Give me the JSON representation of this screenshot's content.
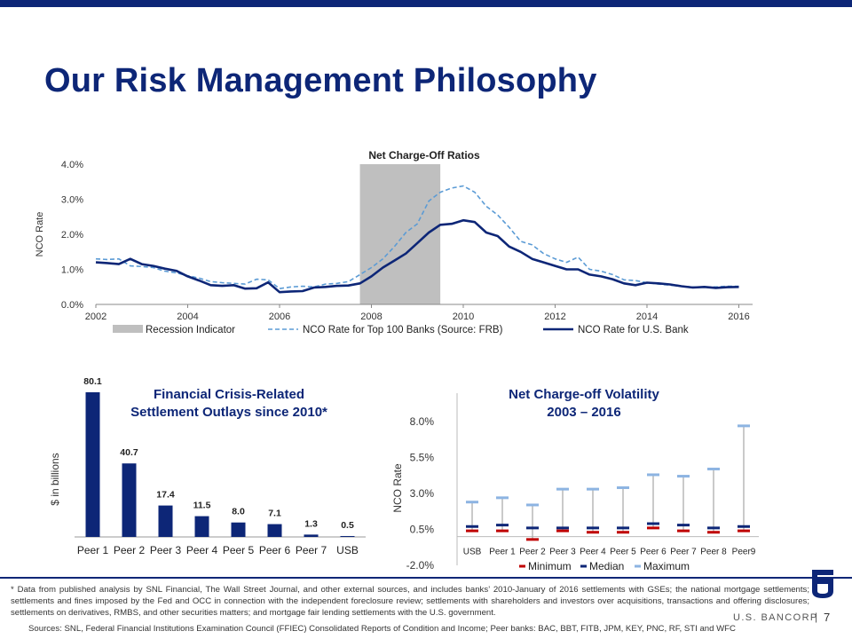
{
  "title": "Our Risk Management Philosophy",
  "footnote": "* Data from published analysis by SNL Financial, The Wall Street Journal, and other external sources, and includes banks’ 2010-January of 2016 settlements with GSEs; the national mortgage settlements; settlements and fines imposed by the Fed and OCC in connection with the independent foreclosure review; settlements with shareholders and investors over acquisitions, transactions and offering disclosures; settlements on derivatives, RMBS, and other securities matters; and mortgage fair lending settlements with the U.S. government.",
  "sources": "Sources: SNL, Federal Financial Institutions Examination Council (FFIEC) Consolidated Reports of Condition and Income; Peer banks: BAC, BBT, FITB, JPM, KEY, PNC, RF, STI and WFC",
  "brand": "U.S. BANCORP",
  "page_number": "7",
  "colors": {
    "navy": "#0d2677",
    "dashed": "#5b9bd5",
    "recession": "#bfbfbf",
    "minimum": "#c00000",
    "median": "#0d2677",
    "maximum": "#8db4e2",
    "range_line": "#a6a6a6"
  },
  "chart_data": [
    {
      "type": "line",
      "title": "Net Charge-Off Ratios",
      "ylabel": "NCO Rate",
      "xlim": [
        2002,
        2016.3
      ],
      "ylim": [
        0,
        4
      ],
      "x_ticks": [
        "2002",
        "2004",
        "2006",
        "2008",
        "2010",
        "2012",
        "2014",
        "2016"
      ],
      "y_ticks": [
        "0.0%",
        "1.0%",
        "2.0%",
        "3.0%",
        "4.0%"
      ],
      "recession": {
        "name": "Recession Indicator",
        "start": 2007.75,
        "end": 2009.5
      },
      "series": [
        {
          "name": "NCO Rate for Top 100 Banks (Source: FRB)",
          "style": "dashed",
          "x": [
            2002,
            2002.25,
            2002.5,
            2002.75,
            2003,
            2003.25,
            2003.5,
            2003.75,
            2004,
            2004.25,
            2004.5,
            2004.75,
            2005,
            2005.25,
            2005.5,
            2005.75,
            2006,
            2006.25,
            2006.5,
            2006.75,
            2007,
            2007.25,
            2007.5,
            2007.75,
            2008,
            2008.25,
            2008.5,
            2008.75,
            2009,
            2009.25,
            2009.5,
            2009.75,
            2010,
            2010.25,
            2010.5,
            2010.75,
            2011,
            2011.25,
            2011.5,
            2011.75,
            2012,
            2012.25,
            2012.5,
            2012.75,
            2013,
            2013.25,
            2013.5,
            2013.75,
            2014,
            2014.25,
            2014.5,
            2014.75,
            2015,
            2015.25,
            2015.5,
            2015.75,
            2016
          ],
          "y": [
            1.3,
            1.28,
            1.3,
            1.1,
            1.08,
            1.05,
            0.95,
            0.9,
            0.82,
            0.75,
            0.65,
            0.62,
            0.6,
            0.58,
            0.72,
            0.7,
            0.45,
            0.5,
            0.52,
            0.5,
            0.58,
            0.6,
            0.65,
            0.85,
            1.05,
            1.3,
            1.65,
            2.05,
            2.3,
            2.95,
            3.2,
            3.32,
            3.38,
            3.2,
            2.8,
            2.55,
            2.2,
            1.8,
            1.7,
            1.45,
            1.3,
            1.2,
            1.35,
            1.0,
            0.95,
            0.85,
            0.7,
            0.68,
            0.62,
            0.58,
            0.55,
            0.52,
            0.5,
            0.5,
            0.5,
            0.52,
            0.52
          ]
        },
        {
          "name": "NCO Rate for U.S. Bank",
          "style": "solid",
          "x": [
            2002,
            2002.25,
            2002.5,
            2002.75,
            2003,
            2003.25,
            2003.5,
            2003.75,
            2004,
            2004.25,
            2004.5,
            2004.75,
            2005,
            2005.25,
            2005.5,
            2005.75,
            2006,
            2006.25,
            2006.5,
            2006.75,
            2007,
            2007.25,
            2007.5,
            2007.75,
            2008,
            2008.25,
            2008.5,
            2008.75,
            2009,
            2009.25,
            2009.5,
            2009.75,
            2010,
            2010.25,
            2010.5,
            2010.75,
            2011,
            2011.25,
            2011.5,
            2011.75,
            2012,
            2012.25,
            2012.5,
            2012.75,
            2013,
            2013.25,
            2013.5,
            2013.75,
            2014,
            2014.25,
            2014.5,
            2014.75,
            2015,
            2015.25,
            2015.5,
            2015.75,
            2016
          ],
          "y": [
            1.2,
            1.18,
            1.15,
            1.3,
            1.15,
            1.1,
            1.02,
            0.96,
            0.8,
            0.68,
            0.55,
            0.53,
            0.55,
            0.45,
            0.46,
            0.63,
            0.35,
            0.37,
            0.38,
            0.48,
            0.5,
            0.53,
            0.54,
            0.6,
            0.8,
            1.05,
            1.25,
            1.45,
            1.75,
            2.05,
            2.27,
            2.3,
            2.4,
            2.35,
            2.05,
            1.95,
            1.65,
            1.5,
            1.3,
            1.2,
            1.1,
            1.0,
            1.0,
            0.85,
            0.8,
            0.72,
            0.6,
            0.55,
            0.62,
            0.6,
            0.57,
            0.52,
            0.48,
            0.5,
            0.47,
            0.49,
            0.5
          ]
        }
      ]
    },
    {
      "type": "bar",
      "title": "Financial Crisis-Related Settlement Outlays since 2010*",
      "title_lines": [
        "Financial Crisis-Related",
        "Settlement Outlays since 2010*"
      ],
      "ylabel": "$ in billions",
      "categories": [
        "Peer 1",
        "Peer 2",
        "Peer 3",
        "Peer 4",
        "Peer 5",
        "Peer 6",
        "Peer 7",
        "USB"
      ],
      "values": [
        80.1,
        40.7,
        17.4,
        11.5,
        8.0,
        7.1,
        1.3,
        0.5
      ],
      "value_labels": [
        "80.1",
        "40.7",
        "17.4",
        "11.5",
        "8.0",
        "7.1",
        "1.3",
        "0.5"
      ],
      "ylim": [
        0,
        80.1
      ]
    },
    {
      "type": "range",
      "title": "Net Charge-off Volatility 2003 – 2016",
      "title_lines": [
        "Net Charge-off Volatility",
        "2003 – 2016"
      ],
      "ylabel": "NCO Rate",
      "ylim": [
        -2.0,
        8.0
      ],
      "y_ticks": [
        "-2.0%",
        "0.5%",
        "3.0%",
        "5.5%",
        "8.0%"
      ],
      "categories": [
        "USB",
        "Peer 1",
        "Peer 2",
        "Peer 3",
        "Peer 4",
        "Peer 5",
        "Peer 6",
        "Peer 7",
        "Peer 8",
        "Peer9"
      ],
      "series": [
        {
          "name": "Minimum",
          "values": [
            0.4,
            0.4,
            -0.2,
            0.4,
            0.3,
            0.3,
            0.6,
            0.4,
            0.3,
            0.4
          ]
        },
        {
          "name": "Median",
          "values": [
            0.7,
            0.8,
            0.6,
            0.6,
            0.6,
            0.6,
            0.9,
            0.8,
            0.6,
            0.7
          ]
        },
        {
          "name": "Maximum",
          "values": [
            2.4,
            2.7,
            2.2,
            3.3,
            3.3,
            3.4,
            4.3,
            4.2,
            4.7,
            7.7
          ]
        }
      ]
    }
  ]
}
